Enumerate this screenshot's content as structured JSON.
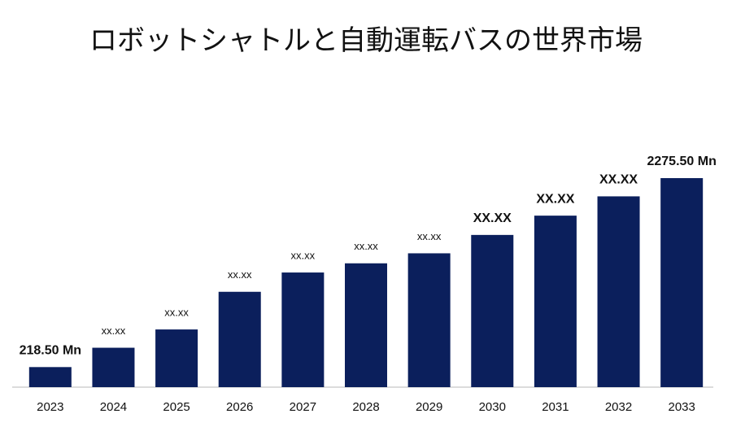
{
  "chart_data": {
    "type": "bar",
    "title": "ロボットシャトルと自動運転バスの世界市場",
    "categories": [
      "2023",
      "2024",
      "2025",
      "2026",
      "2027",
      "2028",
      "2029",
      "2030",
      "2031",
      "2032",
      "2033"
    ],
    "values": [
      218.5,
      429,
      628,
      1038,
      1248,
      1348,
      1457,
      1657,
      1867,
      2077,
      2275.5
    ],
    "value_labels": [
      "218.50 Mn",
      "xx.xx",
      "xx.xx",
      "xx.xx",
      "xx.xx",
      "xx.xx",
      "xx.xx",
      "XX.XX",
      "XX.XX",
      "XX.XX",
      "2275.50 Mn"
    ],
    "color": "#0b1f5c"
  }
}
